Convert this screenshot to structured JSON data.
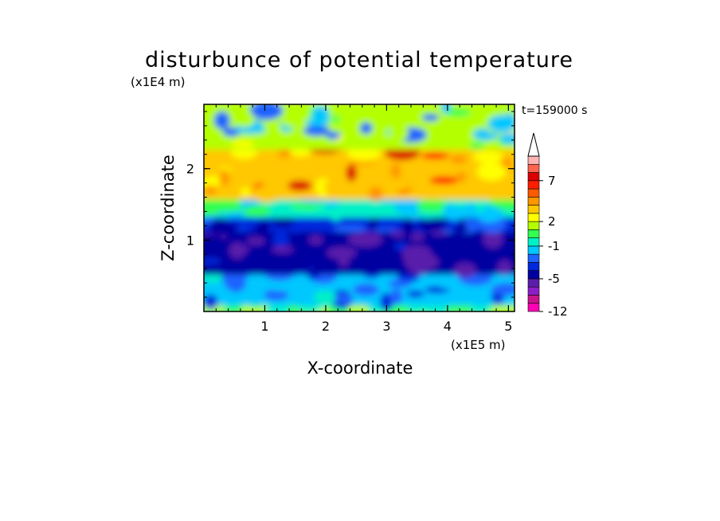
{
  "chart_data": {
    "type": "heatmap",
    "title": "disturbunce of potential temperature",
    "xlabel": "X-coordinate",
    "ylabel": "Z-coordinate",
    "x_unit": "(x1E5 m)",
    "y_unit": "(x1E4 m)",
    "time_label": "t=159000 s",
    "x_ticks": [
      1,
      2,
      3,
      4,
      5
    ],
    "y_ticks": [
      1,
      2
    ],
    "xlim": [
      0,
      5.1
    ],
    "ylim": [
      0,
      2.9
    ],
    "colorbar": {
      "levels": [
        -12,
        -11,
        -9,
        -7,
        -5,
        -4,
        -3,
        -2,
        -1,
        0,
        1,
        2,
        3,
        4,
        5,
        6,
        7,
        8,
        9,
        10
      ],
      "tick_labels": [
        "7",
        "2",
        "-1",
        "-5",
        "-12"
      ],
      "tick_values": [
        7,
        2,
        -1,
        -5,
        -12
      ],
      "top_arrow": true
    },
    "layers": [
      {
        "z_range": [
          0,
          0.12
        ],
        "dominant_value": 0.5,
        "description_color": "green"
      },
      {
        "z_range": [
          0.12,
          0.55
        ],
        "dominant_value": -1.5,
        "mixed_with": -3
      },
      {
        "z_range": [
          0.55,
          1.15
        ],
        "dominant_value": -5
      },
      {
        "z_range": [
          1.15,
          1.35
        ],
        "dominant_value": -3.5
      },
      {
        "z_range": [
          1.35,
          1.6
        ],
        "dominant_value": -0.5
      },
      {
        "z_range": [
          1.6,
          2.3
        ],
        "dominant_value": 3.5,
        "max_value": 7.5
      },
      {
        "z_range": [
          2.3,
          2.9
        ],
        "dominant_value": 1.5,
        "mixed_with": -2
      }
    ]
  }
}
